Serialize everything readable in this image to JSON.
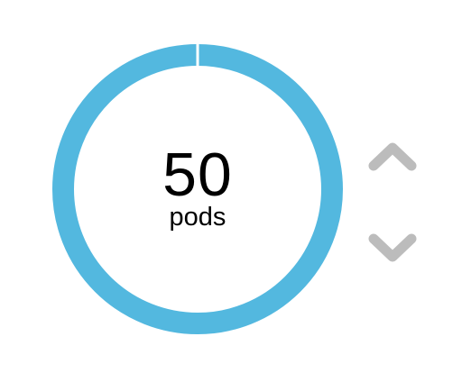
{
  "pod_counter": {
    "value": "50",
    "unit": "pods",
    "ring_color": "#53b8df",
    "chevron_color": "#bcbcbc",
    "increment_icon": "chevron-up-icon",
    "decrement_icon": "chevron-down-icon"
  }
}
